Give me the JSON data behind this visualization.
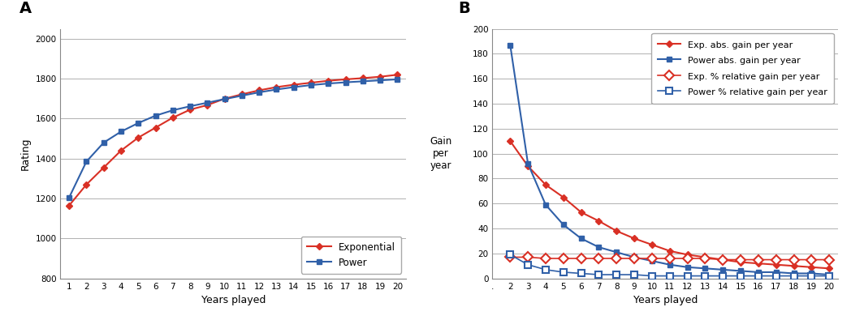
{
  "years_A": [
    1,
    2,
    3,
    4,
    5,
    6,
    7,
    8,
    9,
    10,
    11,
    12,
    13,
    14,
    15,
    16,
    17,
    18,
    19,
    20
  ],
  "exp_rating": [
    1165,
    1270,
    1355,
    1440,
    1505,
    1555,
    1605,
    1645,
    1668,
    1700,
    1722,
    1742,
    1758,
    1770,
    1780,
    1790,
    1797,
    1803,
    1810,
    1820
  ],
  "power_rating": [
    1205,
    1385,
    1480,
    1535,
    1578,
    1615,
    1642,
    1662,
    1680,
    1698,
    1715,
    1732,
    1746,
    1758,
    1768,
    1776,
    1782,
    1787,
    1792,
    1797
  ],
  "years_B": [
    2,
    3,
    4,
    5,
    6,
    7,
    8,
    9,
    10,
    11,
    12,
    13,
    14,
    15,
    16,
    17,
    18,
    19,
    20
  ],
  "exp_abs": [
    110,
    90,
    75,
    65,
    53,
    46,
    38,
    32,
    27,
    22,
    19,
    17,
    15,
    13,
    12,
    11,
    10,
    9,
    8
  ],
  "power_abs": [
    187,
    92,
    59,
    43,
    32,
    25,
    21,
    17,
    14,
    11,
    9,
    8,
    7,
    6,
    5,
    5,
    4,
    4,
    3
  ],
  "exp_pct": [
    17,
    17,
    16,
    16,
    16,
    16,
    16,
    16,
    16,
    16,
    16,
    16,
    15,
    15,
    15,
    15,
    15,
    15,
    15
  ],
  "power_pct": [
    19,
    11,
    7,
    5,
    4,
    3,
    3,
    3,
    2,
    2,
    2,
    2,
    2,
    2,
    2,
    2,
    2,
    2,
    2
  ],
  "color_red": "#d93025",
  "color_blue": "#3060a8",
  "bg_color": "#ffffff",
  "grid_color": "#b0b0b0",
  "spine_color": "#888888"
}
